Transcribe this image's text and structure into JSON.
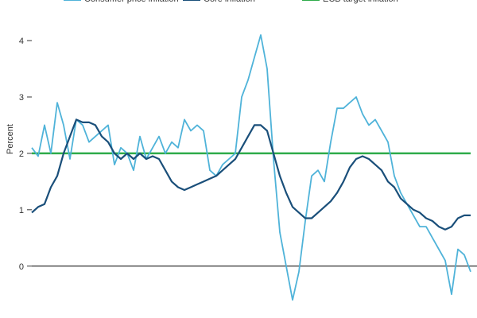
{
  "chart_data": {
    "type": "line",
    "ylabel": "Percent",
    "ylim": [
      -0.92,
      4.72
    ],
    "yticks": [
      0,
      1,
      2,
      3,
      4
    ],
    "series": [
      {
        "name": "Consumer price inflation",
        "color": "#4fb3d9",
        "values": [
          2.1,
          1.95,
          2.5,
          2.0,
          2.9,
          2.5,
          1.9,
          2.6,
          2.5,
          2.2,
          2.3,
          2.4,
          2.5,
          1.8,
          2.1,
          2.0,
          1.7,
          2.3,
          1.9,
          2.1,
          2.3,
          2.0,
          2.2,
          2.1,
          2.6,
          2.4,
          2.5,
          2.4,
          1.7,
          1.6,
          1.8,
          1.9,
          2.0,
          3.0,
          3.3,
          3.7,
          4.1,
          3.5,
          1.9,
          0.6,
          0.0,
          -0.6,
          -0.1,
          0.8,
          1.6,
          1.7,
          1.5,
          2.2,
          2.8,
          2.8,
          2.9,
          3.0,
          2.7,
          2.5,
          2.6,
          2.4,
          2.2,
          1.6,
          1.3,
          1.1,
          0.9,
          0.7,
          0.7,
          0.5,
          0.3,
          0.1,
          -0.5,
          0.3,
          0.2,
          -0.1
        ]
      },
      {
        "name": "Core inflation",
        "color": "#1a4f7a",
        "values": [
          0.95,
          1.05,
          1.1,
          1.4,
          1.6,
          2.0,
          2.3,
          2.6,
          2.55,
          2.55,
          2.5,
          2.3,
          2.2,
          2.0,
          1.9,
          2.0,
          1.9,
          2.0,
          1.9,
          1.95,
          1.9,
          1.7,
          1.5,
          1.4,
          1.35,
          1.4,
          1.45,
          1.5,
          1.55,
          1.6,
          1.7,
          1.8,
          1.9,
          2.1,
          2.3,
          2.5,
          2.5,
          2.4,
          2.0,
          1.6,
          1.3,
          1.05,
          0.95,
          0.85,
          0.85,
          0.95,
          1.05,
          1.15,
          1.3,
          1.5,
          1.75,
          1.9,
          1.95,
          1.9,
          1.8,
          1.7,
          1.5,
          1.4,
          1.2,
          1.1,
          1.0,
          0.95,
          0.85,
          0.8,
          0.7,
          0.65,
          0.7,
          0.85,
          0.9,
          0.9
        ]
      }
    ],
    "target": {
      "name": "ECB target inflation",
      "color": "#2eab4a",
      "value": 2
    }
  }
}
